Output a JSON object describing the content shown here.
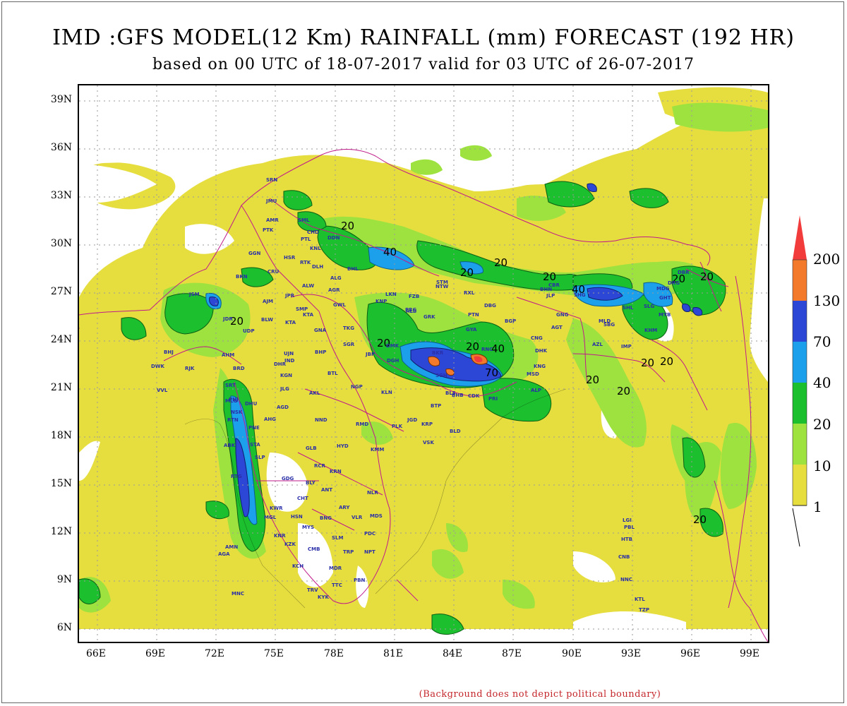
{
  "title": "IMD :GFS MODEL(12 Km) RAINFALL (mm) FORECAST (192 HR)",
  "subtitle": "based on 00 UTC of 18-07-2017 valid for 03 UTC of 26-07-2017",
  "footnote": "(Background does not depict political boundary)",
  "axes": {
    "lat_labels": [
      "39N",
      "36N",
      "33N",
      "30N",
      "27N",
      "24N",
      "21N",
      "18N",
      "15N",
      "12N",
      "9N",
      "6N"
    ],
    "lon_labels": [
      "66E",
      "69E",
      "72E",
      "75E",
      "78E",
      "81E",
      "84E",
      "87E",
      "90E",
      "93E",
      "96E",
      "99E"
    ]
  },
  "legend": {
    "levels": [
      {
        "label": "200",
        "color": "#f27a2a"
      },
      {
        "label": "130",
        "color": "#2c46d6"
      },
      {
        "label": "70",
        "color": "#1da0ec"
      },
      {
        "label": "40",
        "color": "#1cbf2d"
      },
      {
        "label": "20",
        "color": "#9ee23f"
      },
      {
        "label": "10",
        "color": "#e6de3e"
      },
      {
        "label": "1",
        "color": ""
      }
    ],
    "top_color": "#f23b3b"
  },
  "colors": {
    "yellow": "#e6de3e",
    "lightgreen": "#9ee23f",
    "green": "#1cbf2d",
    "skyblue": "#1da0ec",
    "blue": "#2c46d6",
    "orange": "#f27a2a",
    "boundary": "#c01b8a"
  },
  "contour_labels": [
    "20",
    "40",
    "20",
    "20",
    "20",
    "40",
    "20",
    "20",
    "20",
    "20",
    "40",
    "70",
    "20",
    "20",
    "20",
    "20",
    "20",
    "20"
  ],
  "cities": [
    "SRN",
    "JMU",
    "AMR",
    "PTK",
    "SML",
    "DDN",
    "CHD",
    "PTL",
    "KNL",
    "HSR",
    "GGN",
    "BKN",
    "CRU",
    "ALW",
    "JPR",
    "AJM",
    "JSM",
    "JDR",
    "UDP",
    "BLW",
    "KTA",
    "SMP",
    "KTA",
    "GWL",
    "AGR",
    "ALG",
    "DLH",
    "RTK",
    "LKN",
    "FZB",
    "KNP",
    "ALB",
    "PRG",
    "GRK",
    "PTN",
    "BGP",
    "DBG",
    "BHL",
    "RXL",
    "NTW",
    "STM",
    "GYA",
    "RNC",
    "BKR",
    "DMK",
    "JBP",
    "SGR",
    "TKG",
    "GNA",
    "BHP",
    "UJN",
    "IND",
    "DHR",
    "AHM",
    "BHJ",
    "DWK",
    "RJK",
    "VVL",
    "BRD",
    "SRT",
    "DHU",
    "JLG",
    "AKL",
    "NGP",
    "BTL",
    "KGN",
    "MLG",
    "NSK",
    "PNE",
    "AGD",
    "AHG",
    "NND",
    "RMD",
    "STA",
    "GLB",
    "HYD",
    "KMM",
    "ABK",
    "SLP",
    "RCR",
    "KRN",
    "GDG",
    "BLY",
    "ANT",
    "RTG",
    "NLR",
    "CHT",
    "ARY",
    "VLR",
    "MDS",
    "KWR",
    "MGL",
    "HSN",
    "BNG",
    "MYS",
    "SLM",
    "PDC",
    "KNR",
    "KZK",
    "CMB",
    "TRP",
    "NPT",
    "AMN",
    "AGA",
    "MDR",
    "KCH",
    "TTC",
    "PBN",
    "TRV",
    "KYK",
    "MNC",
    "PNJ",
    "RTN",
    "VSK",
    "JGD",
    "KRP",
    "BTP",
    "PLK",
    "BLS",
    "BHB",
    "CDK",
    "PRI",
    "KLN",
    "BLD",
    "DGH",
    "MSD",
    "SGH",
    "ALP",
    "KNG",
    "DHK",
    "CNG",
    "AGT",
    "AZL",
    "IMP",
    "KHM",
    "SBG",
    "MYB",
    "LGI",
    "PBL",
    "HTB",
    "CNB",
    "NNC",
    "KTL",
    "TZP",
    "DBR",
    "DRG",
    "MDG",
    "GHT",
    "SHL",
    "SLG",
    "GNG",
    "CBR",
    "MLD",
    "BHN",
    "JLP",
    "SHG"
  ]
}
